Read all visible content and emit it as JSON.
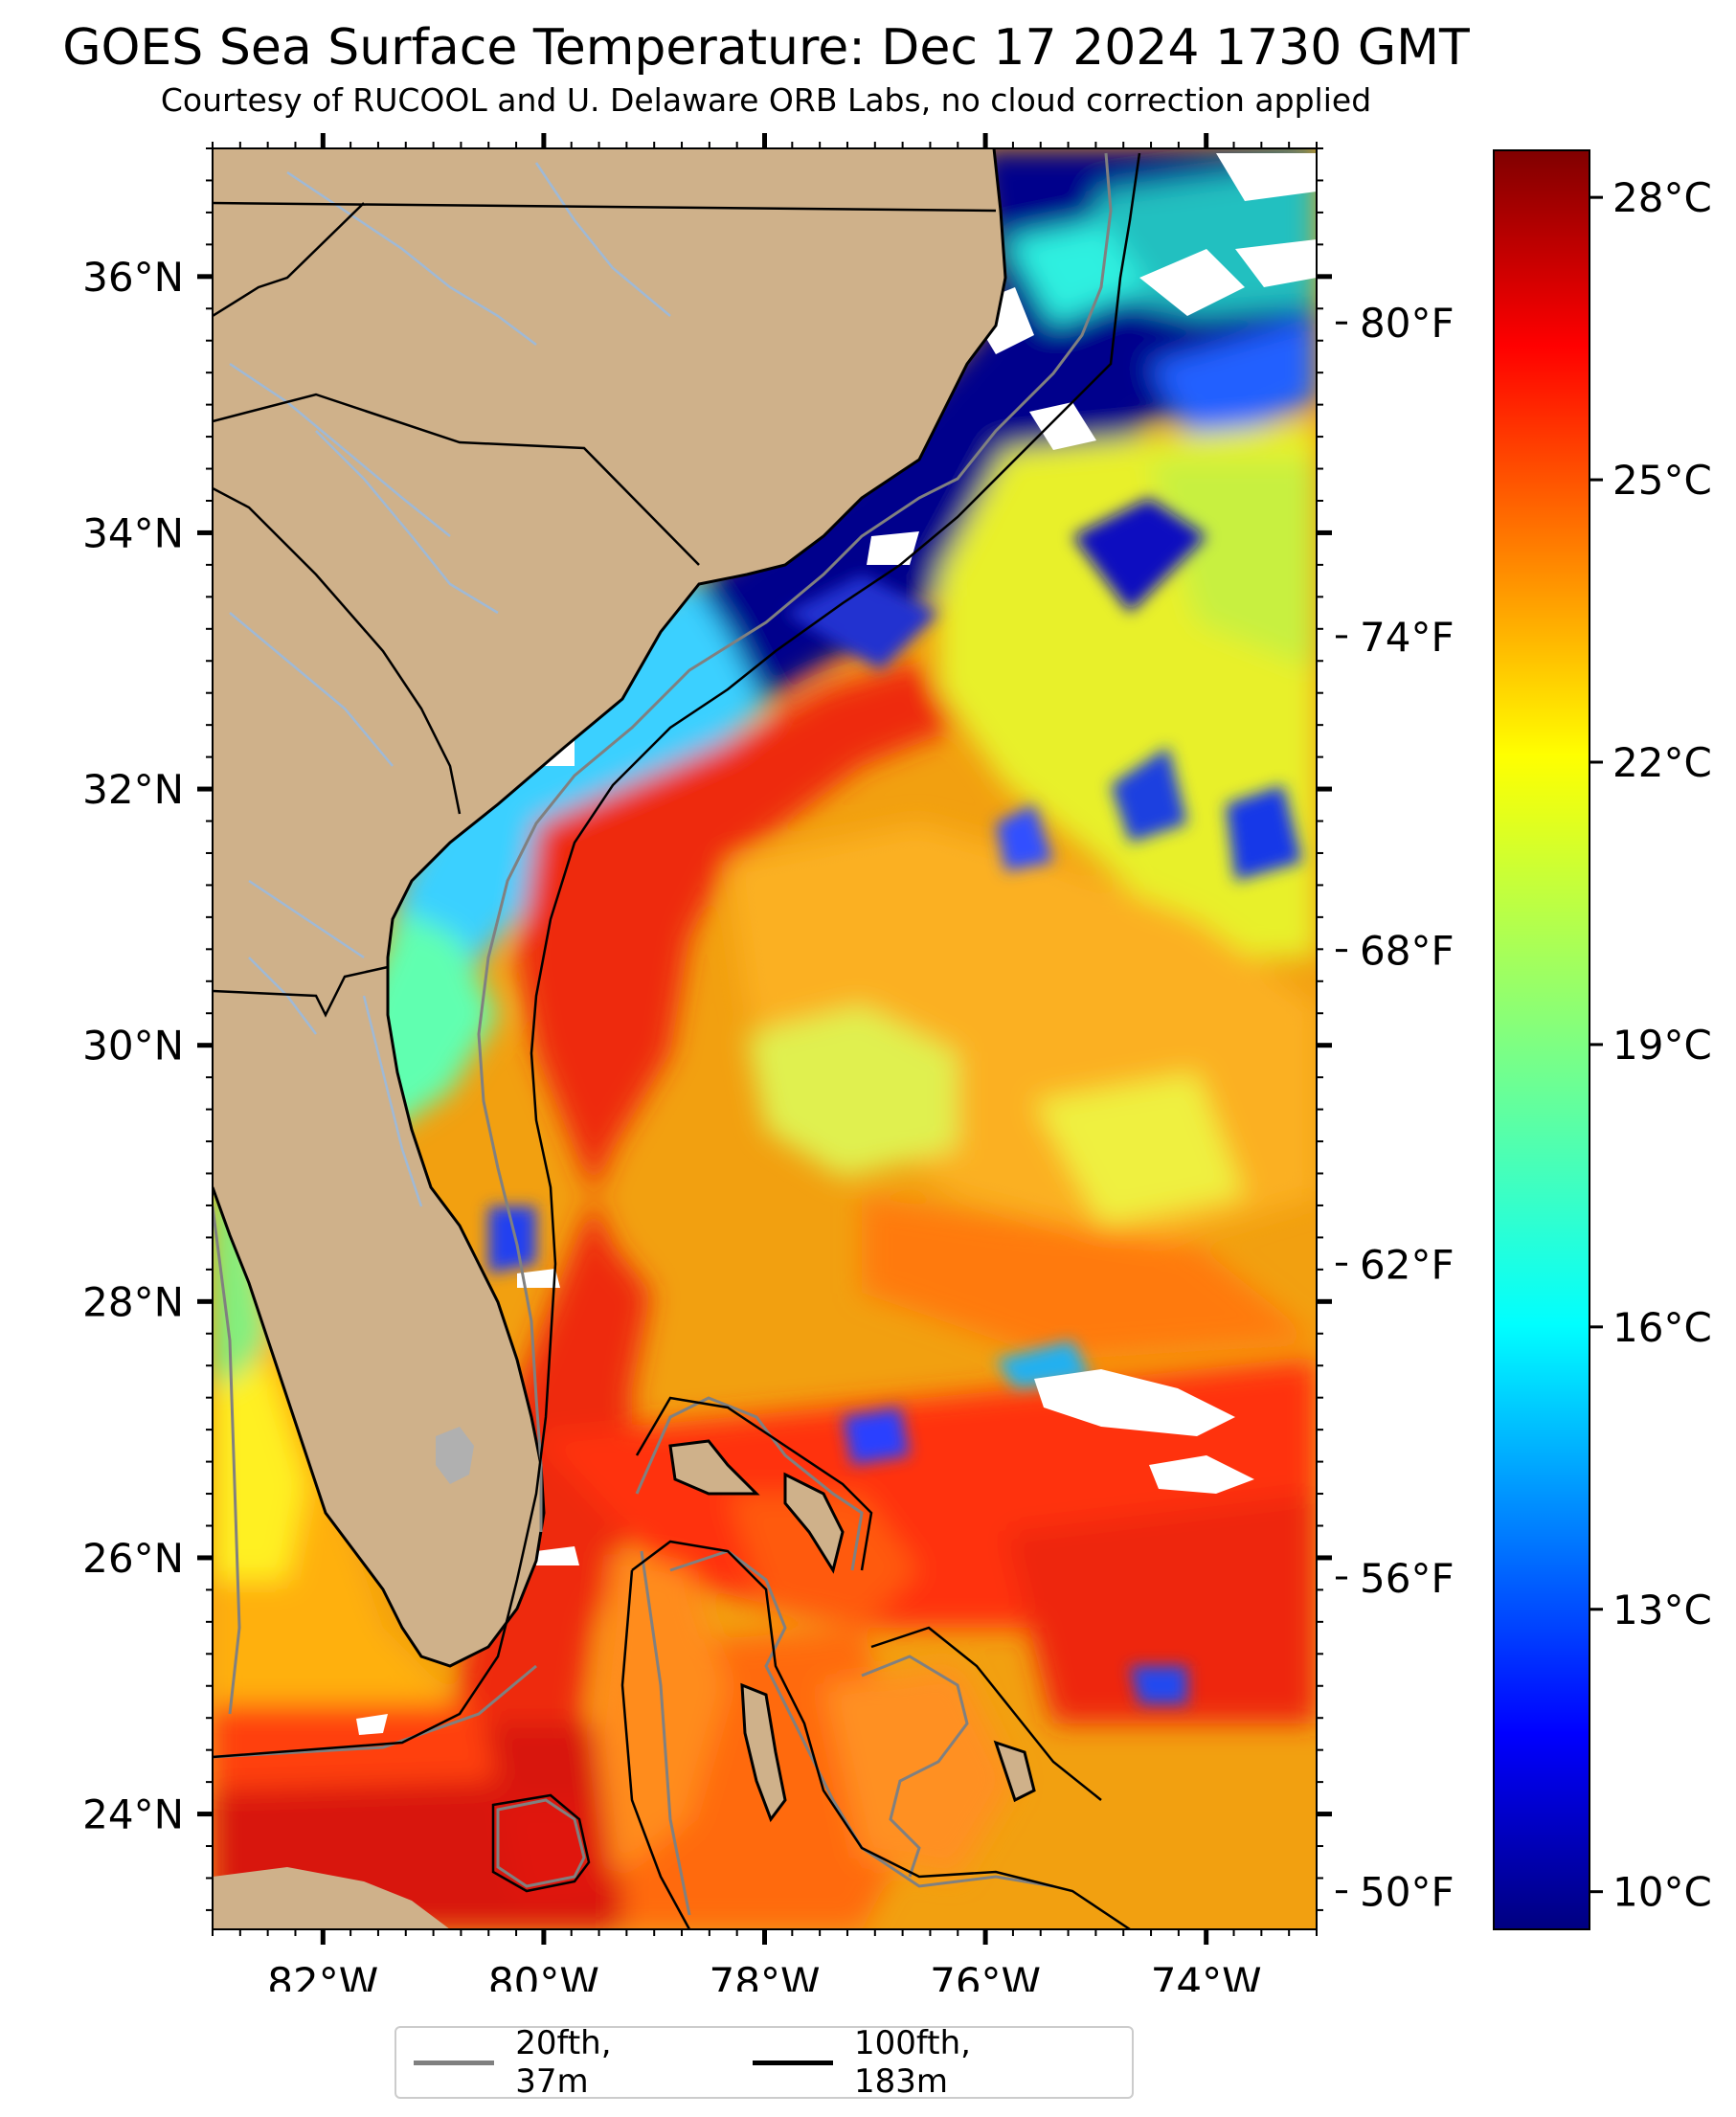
{
  "title": "GOES Sea Surface Temperature: Dec 17 2024 1730 GMT",
  "subtitle": "Courtesy of RUCOOL and U. Delaware ORB Labs, no cloud correction applied",
  "map": {
    "lon_range": [
      -83,
      -73
    ],
    "lat_range": [
      23.1,
      37.0
    ],
    "lon_ticks": [
      {
        "value": -82,
        "label": "82°W"
      },
      {
        "value": -80,
        "label": "80°W"
      },
      {
        "value": -78,
        "label": "78°W"
      },
      {
        "value": -76,
        "label": "76°W"
      },
      {
        "value": -74,
        "label": "74°W"
      }
    ],
    "lat_ticks": [
      {
        "value": 36,
        "label": "36°N"
      },
      {
        "value": 34,
        "label": "34°N"
      },
      {
        "value": 32,
        "label": "32°N"
      },
      {
        "value": 30,
        "label": "30°N"
      },
      {
        "value": 28,
        "label": "28°N"
      },
      {
        "value": 26,
        "label": "26°N"
      },
      {
        "value": 24,
        "label": "24°N"
      }
    ],
    "land_color": "#cfb18a",
    "cloud_color": "#ffffff",
    "colormap": "jet"
  },
  "colorbar": {
    "range_c": [
      9.6,
      28.5
    ],
    "celsius_ticks": [
      {
        "value": 28,
        "label": "28°C"
      },
      {
        "value": 25,
        "label": "25°C"
      },
      {
        "value": 22,
        "label": "22°C"
      },
      {
        "value": 19,
        "label": "19°C"
      },
      {
        "value": 16,
        "label": "16°C"
      },
      {
        "value": 13,
        "label": "13°C"
      },
      {
        "value": 10,
        "label": "10°C"
      }
    ],
    "fahrenheit_ticks": [
      {
        "value": 80,
        "label": "80°F"
      },
      {
        "value": 74,
        "label": "74°F"
      },
      {
        "value": 68,
        "label": "68°F"
      },
      {
        "value": 62,
        "label": "62°F"
      },
      {
        "value": 56,
        "label": "56°F"
      },
      {
        "value": 50,
        "label": "50°F"
      }
    ]
  },
  "legend": {
    "items": [
      {
        "label": "20fth, 37m",
        "color": "#808080"
      },
      {
        "label": "100fth, 183m",
        "color": "#000000"
      }
    ]
  }
}
